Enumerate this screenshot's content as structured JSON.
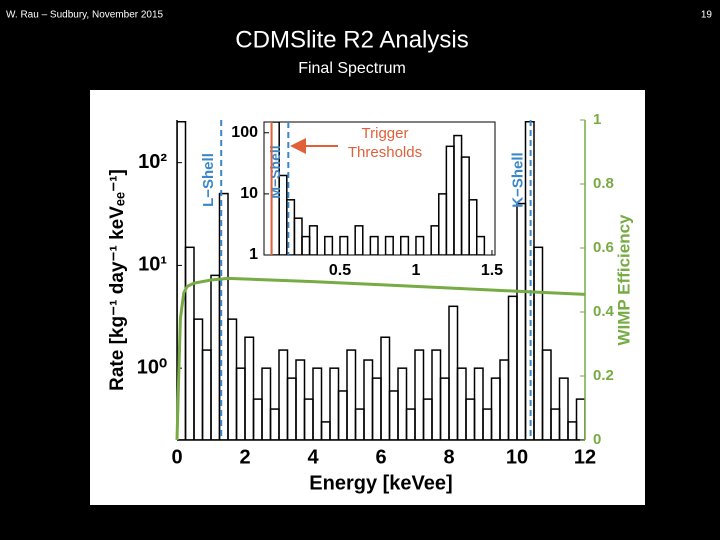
{
  "header": {
    "left": "W. Rau – Sudbury, November 2015",
    "right": "19"
  },
  "title": "CDMSlite R2 Analysis",
  "subtitle": "Final Spectrum",
  "chart_data": [
    {
      "type": "histogram",
      "xlabel": "Energy [keVee]",
      "ylabel": "Rate [kg⁻¹ day⁻¹ keVₑₑ⁻¹]",
      "y2label": "WIMP Efficiency",
      "color": "#000000",
      "log_y": true,
      "bins": [
        0,
        0.25,
        0.5,
        0.75,
        1,
        1.25,
        1.5,
        1.75,
        2,
        2.25,
        2.5,
        2.75,
        3,
        3.25,
        3.5,
        3.75,
        4,
        4.25,
        4.5,
        4.75,
        5,
        5.25,
        5.5,
        5.75,
        6,
        6.25,
        6.5,
        6.75,
        7,
        7.25,
        7.5,
        7.75,
        8,
        8.25,
        8.5,
        8.75,
        9,
        9.25,
        9.5,
        9.75,
        10,
        10.25,
        10.5,
        10.75,
        11,
        11.25,
        11.5,
        11.75,
        12
      ],
      "values": [
        250,
        15,
        3,
        1.5,
        8,
        50,
        3,
        1,
        2,
        0.5,
        1,
        0.4,
        1.5,
        0.8,
        1.2,
        0.5,
        1,
        0.3,
        1,
        0.6,
        1.5,
        0.4,
        1.2,
        0.8,
        2,
        0.6,
        1,
        0.4,
        1.5,
        0.5,
        1.5,
        0.8,
        4,
        1,
        0.5,
        1,
        0.4,
        0.8,
        1.2,
        5,
        40,
        250,
        15,
        1.5,
        0.4,
        0.8,
        0.3,
        0.5
      ],
      "xlim": [
        0,
        12
      ],
      "xticks": [
        0,
        2,
        4,
        6,
        8,
        10,
        12
      ],
      "ylim": [
        0.2,
        260
      ],
      "yticks": [
        {
          "value": 1,
          "label": "10⁰"
        },
        {
          "value": 10,
          "label": "10¹"
        },
        {
          "value": 100,
          "label": "10²"
        }
      ],
      "y2lim": [
        0,
        1
      ],
      "y2ticks": [
        0,
        0.2,
        0.4,
        0.6,
        0.8,
        1
      ],
      "y2color": "#77ab43",
      "overlay": {
        "type": "line",
        "axis": "y2",
        "color": "#77ab43",
        "x": [
          0,
          0.05,
          0.1,
          0.2,
          0.3,
          0.5,
          1,
          1.5,
          2,
          4,
          6,
          8,
          10,
          12
        ],
        "values": [
          0,
          0.2,
          0.38,
          0.46,
          0.48,
          0.49,
          0.5,
          0.505,
          0.503,
          0.495,
          0.485,
          0.475,
          0.465,
          0.455
        ]
      },
      "marker_color": "#3a86c8",
      "markers": [
        {
          "label": "L−Shell",
          "x": 1.3
        },
        {
          "label": "K−Shell",
          "x": 10.4
        }
      ]
    },
    {
      "type": "histogram",
      "color": "#000000",
      "log_y": true,
      "bins": [
        0,
        0.05,
        0.1,
        0.15,
        0.2,
        0.25,
        0.3,
        0.35,
        0.4,
        0.45,
        0.5,
        0.55,
        0.6,
        0.65,
        0.7,
        0.75,
        0.8,
        0.85,
        0.9,
        0.95,
        1,
        1.05,
        1.1,
        1.15,
        1.2,
        1.25,
        1.3,
        1.35,
        1.4,
        1.45,
        1.5
      ],
      "values": [
        1,
        150,
        20,
        8,
        4,
        2,
        3,
        1,
        2,
        1,
        2,
        1,
        3,
        1,
        2,
        1,
        2,
        1,
        2,
        1,
        2,
        1,
        3,
        10,
        60,
        90,
        40,
        8,
        2,
        1
      ],
      "xlim": [
        0,
        1.52
      ],
      "xticks": [
        0.5,
        1,
        1.5
      ],
      "ylim": [
        1,
        150
      ],
      "yticks": [
        1,
        10,
        100
      ],
      "marker_color": "#3a86c8",
      "markers": [
        {
          "label": "M−Shell",
          "x": 0.16
        }
      ],
      "threshold": {
        "label": [
          "Trigger",
          "Thresholds"
        ],
        "x": 0.05,
        "color": "#e0603a"
      }
    }
  ]
}
